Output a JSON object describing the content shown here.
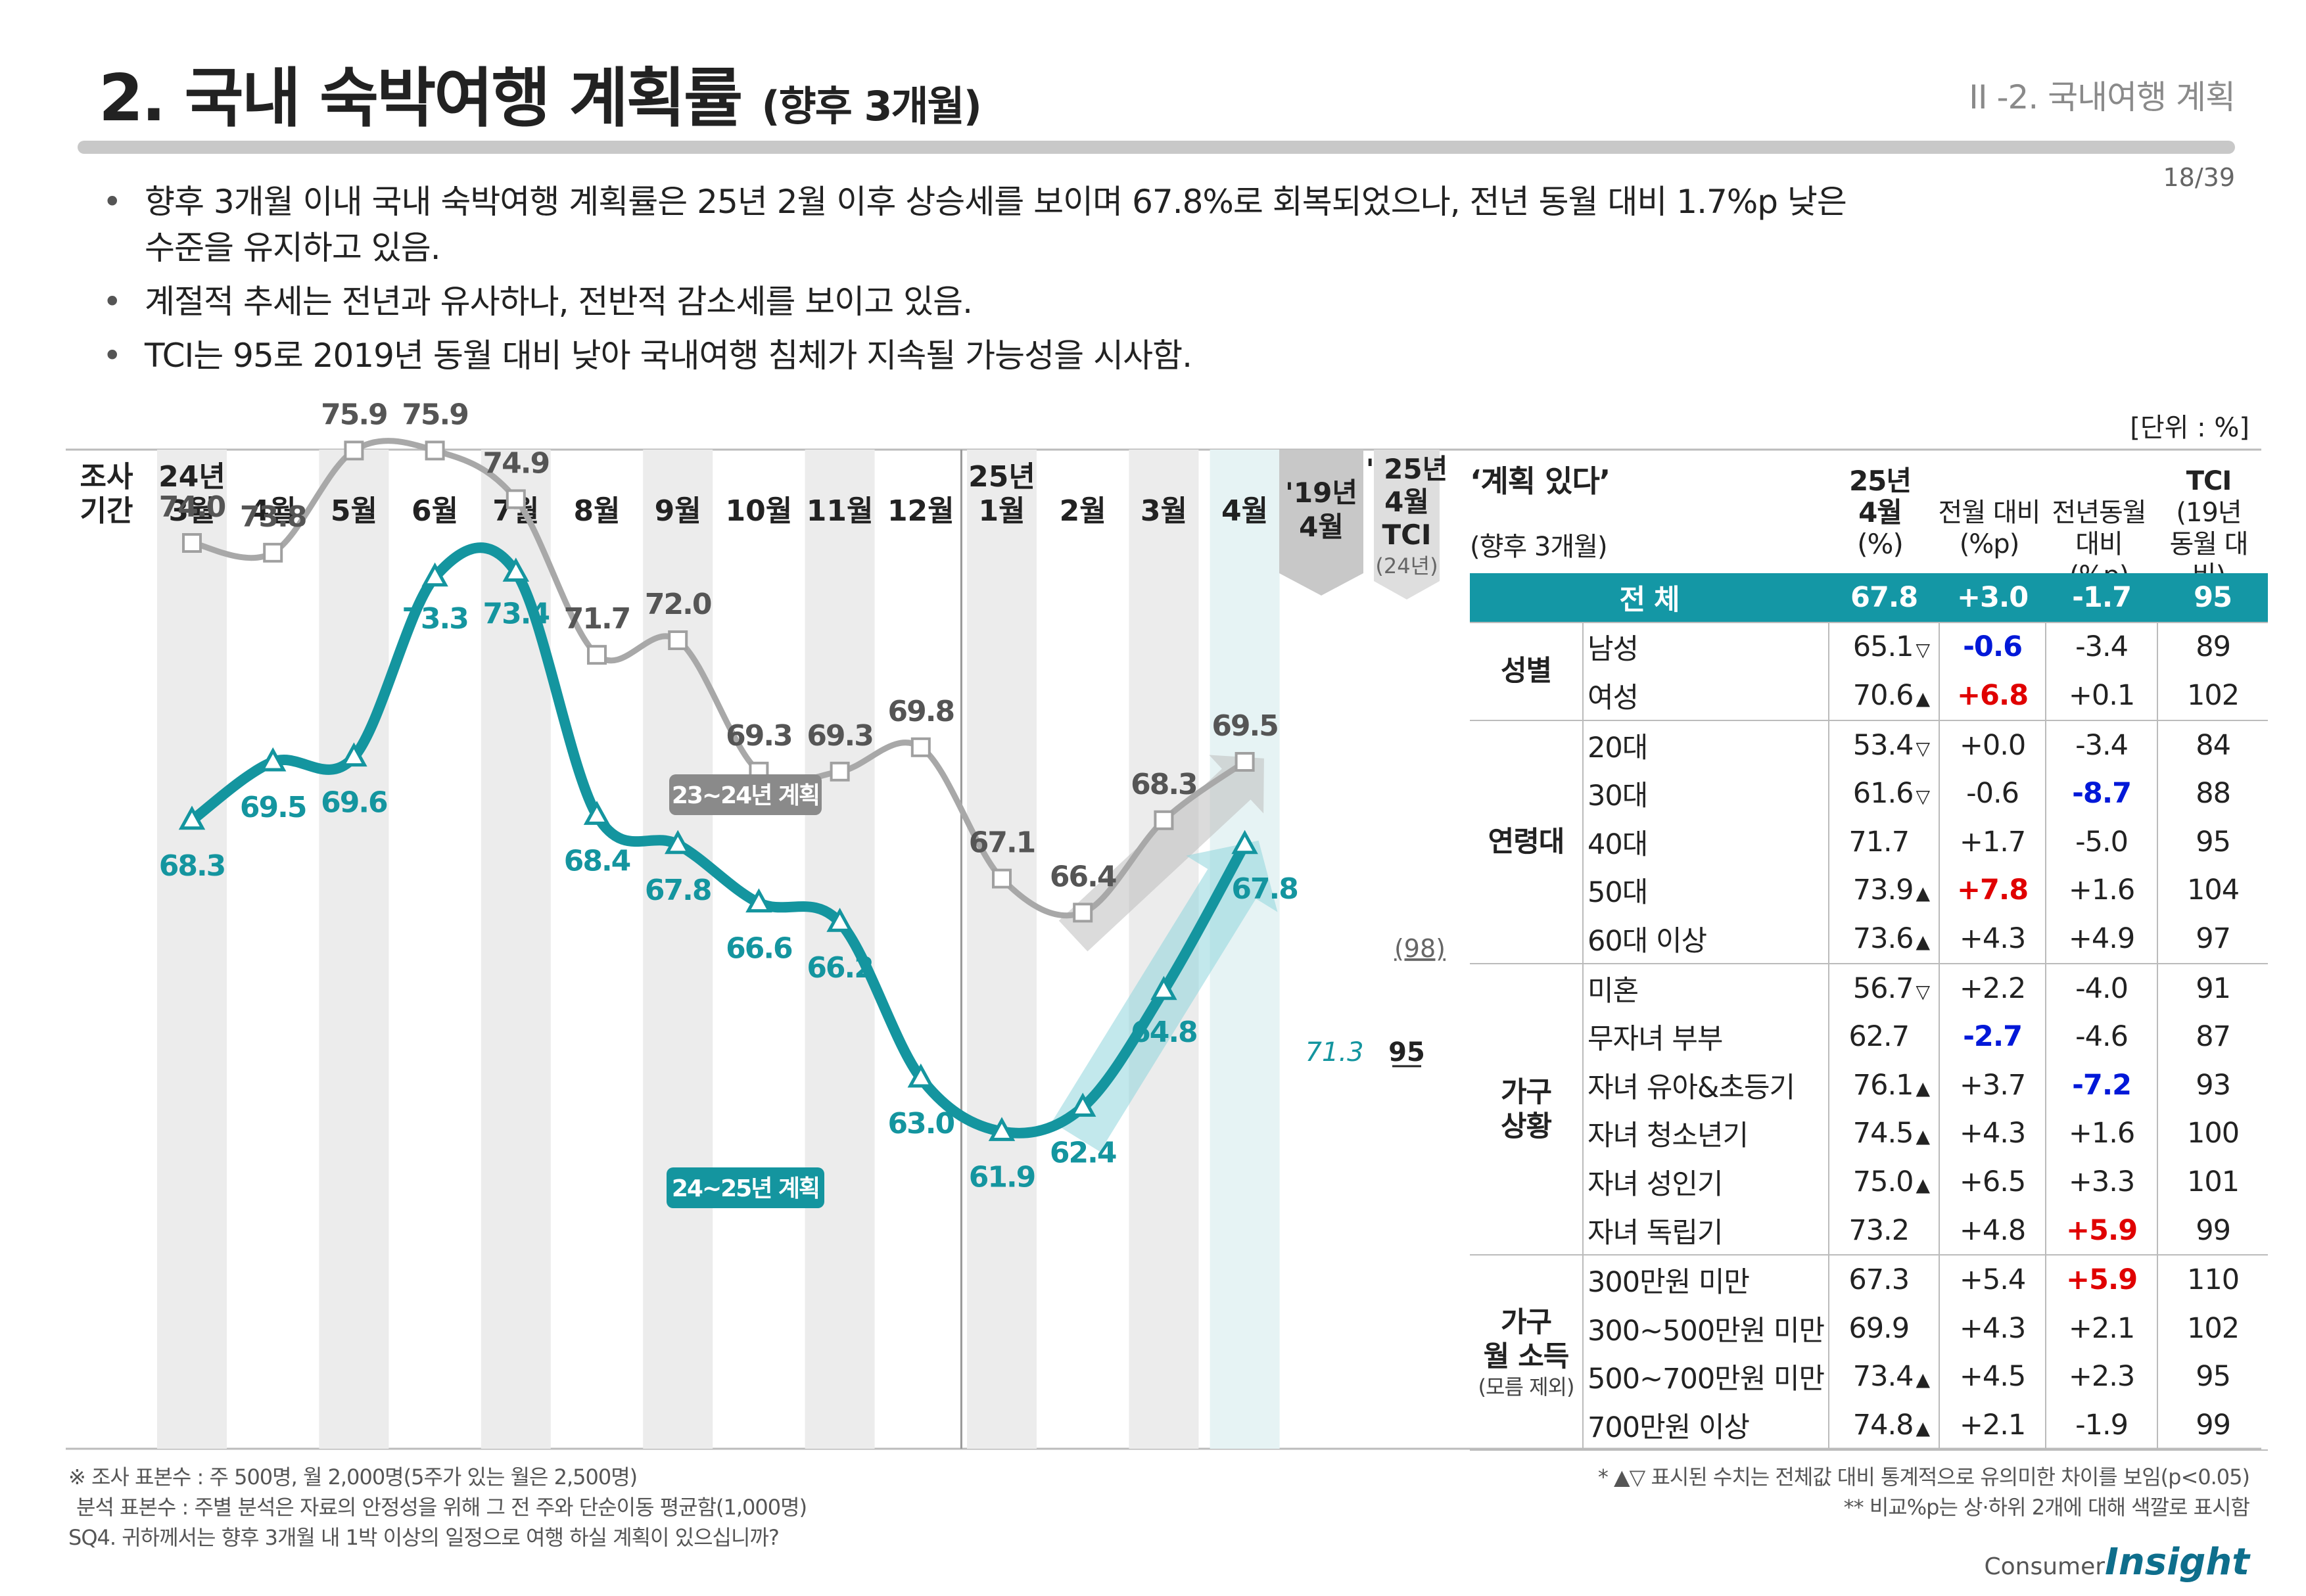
{
  "header": {
    "title": "2. 국내 숙박여행 계획률",
    "title_sub": "(향후 3개월)",
    "section": "II -2. 국내여행 계획",
    "page": "18/39",
    "unit": "[단위 : %]"
  },
  "bullets": [
    "향후 3개월 이내 국내 숙박여행 계획률은 25년 2월 이후 상승세를 보이며 67.8%로 회복되었으나, 전년 동월 대비 1.7%p 낮은 수준을 유지하고 있음.",
    "계절적 추세는 전년과 유사하나, 전반적 감소세를 보이고 있음.",
    "TCI는 95로 2019년 동월 대비 낮아 국내여행 침체가 지속될 가능성을 시사함."
  ],
  "chart_data": {
    "type": "line",
    "row_header": [
      "조사",
      "기간"
    ],
    "categories": [
      [
        "24년",
        "3월"
      ],
      [
        "4월"
      ],
      [
        "5월"
      ],
      [
        "6월"
      ],
      [
        "7월"
      ],
      [
        "8월"
      ],
      [
        "9월"
      ],
      [
        "10월"
      ],
      [
        "11월"
      ],
      [
        "12월"
      ],
      [
        "25년",
        "1월"
      ],
      [
        "2월"
      ],
      [
        "3월"
      ],
      [
        "4월"
      ]
    ],
    "series": [
      {
        "name": "23~24년 계획",
        "color": "#a8a8a8",
        "values": [
          74.0,
          73.8,
          75.9,
          75.9,
          74.9,
          71.7,
          72.0,
          69.3,
          69.3,
          69.8,
          67.1,
          66.4,
          68.3,
          69.5
        ]
      },
      {
        "name": "24~25년 계획",
        "color": "#14959f",
        "values": [
          68.3,
          69.5,
          69.6,
          73.3,
          73.4,
          68.4,
          67.8,
          66.6,
          66.2,
          63.0,
          61.9,
          62.4,
          64.8,
          67.8
        ]
      }
    ],
    "value_labels": {
      "s0": [
        "74.0",
        "73.8",
        "75.9",
        "75.9",
        "74.9",
        "71.7",
        "72.0",
        "69.3",
        "69.3",
        "69.8",
        "67.1",
        "66.4",
        "68.3",
        "69.5"
      ],
      "s1": [
        "68.3",
        "69.5",
        "69.6",
        "73.3",
        "73.4",
        "68.4",
        "67.8",
        "66.6",
        "66.2",
        "63.0",
        "61.9",
        "62.4",
        "64.8",
        "67.8"
      ]
    },
    "extra_columns": {
      "y2019": {
        "label": [
          "'19년",
          "4월"
        ],
        "value": "71.3"
      },
      "tci": {
        "label": [
          "' 25년",
          "4월",
          "TCI"
        ],
        "sublabel": "(24년)",
        "value": "95",
        "prev": "(98)"
      }
    }
  },
  "table": {
    "title": "‘계획 있다’",
    "subtitle": "(향후 3개월)",
    "columns": [
      [
        "25년",
        "4월",
        "(%)"
      ],
      [
        "전월 대비",
        "(%p)"
      ],
      [
        "전년동월",
        "대비 (%p)"
      ],
      [
        "TCI",
        "(19년",
        "동월 대비)"
      ]
    ],
    "total": {
      "label": "전 체",
      "pct": "67.8",
      "mom": "+3.0",
      "yoy": "-1.7",
      "tci": "95"
    },
    "groups": [
      {
        "name": "성별",
        "sub": "",
        "rows": [
          {
            "label": "남성",
            "pct": "65.1",
            "mark": "▽",
            "mom": "-0.6",
            "mom_c": "neg",
            "yoy": "-3.4",
            "yoy_c": "",
            "tci": "89"
          },
          {
            "label": "여성",
            "pct": "70.6",
            "mark": "▲",
            "mom": "+6.8",
            "mom_c": "pos",
            "yoy": "+0.1",
            "yoy_c": "",
            "tci": "102"
          }
        ]
      },
      {
        "name": "연령대",
        "sub": "",
        "rows": [
          {
            "label": "20대",
            "pct": "53.4",
            "mark": "▽",
            "mom": "+0.0",
            "mom_c": "",
            "yoy": "-3.4",
            "yoy_c": "",
            "tci": "84"
          },
          {
            "label": "30대",
            "pct": "61.6",
            "mark": "▽",
            "mom": "-0.6",
            "mom_c": "",
            "yoy": "-8.7",
            "yoy_c": "neg",
            "tci": "88"
          },
          {
            "label": "40대",
            "pct": "71.7",
            "mark": "",
            "mom": "+1.7",
            "mom_c": "",
            "yoy": "-5.0",
            "yoy_c": "",
            "tci": "95"
          },
          {
            "label": "50대",
            "pct": "73.9",
            "mark": "▲",
            "mom": "+7.8",
            "mom_c": "pos",
            "yoy": "+1.6",
            "yoy_c": "",
            "tci": "104"
          },
          {
            "label": "60대 이상",
            "pct": "73.6",
            "mark": "▲",
            "mom": "+4.3",
            "mom_c": "",
            "yoy": "+4.9",
            "yoy_c": "",
            "tci": "97"
          }
        ]
      },
      {
        "name": "가구 상황",
        "sub": "",
        "rows": [
          {
            "label": "미혼",
            "pct": "56.7",
            "mark": "▽",
            "mom": "+2.2",
            "mom_c": "",
            "yoy": "-4.0",
            "yoy_c": "",
            "tci": "91"
          },
          {
            "label": "무자녀 부부",
            "pct": "62.7",
            "mark": "",
            "mom": "-2.7",
            "mom_c": "neg",
            "yoy": "-4.6",
            "yoy_c": "",
            "tci": "87"
          },
          {
            "label": "자녀 유아&초등기",
            "pct": "76.1",
            "mark": "▲",
            "mom": "+3.7",
            "mom_c": "",
            "yoy": "-7.2",
            "yoy_c": "neg",
            "tci": "93"
          },
          {
            "label": "자녀 청소년기",
            "pct": "74.5",
            "mark": "▲",
            "mom": "+4.3",
            "mom_c": "",
            "yoy": "+1.6",
            "yoy_c": "",
            "tci": "100"
          },
          {
            "label": "자녀 성인기",
            "pct": "75.0",
            "mark": "▲",
            "mom": "+6.5",
            "mom_c": "",
            "yoy": "+3.3",
            "yoy_c": "",
            "tci": "101"
          },
          {
            "label": "자녀 독립기",
            "pct": "73.2",
            "mark": "",
            "mom": "+4.8",
            "mom_c": "",
            "yoy": "+5.9",
            "yoy_c": "pos",
            "tci": "99"
          }
        ]
      },
      {
        "name": "가구 월 소득",
        "sub": "(모름 제외)",
        "rows": [
          {
            "label": "300만원 미만",
            "pct": "67.3",
            "mark": "",
            "mom": "+5.4",
            "mom_c": "",
            "yoy": "+5.9",
            "yoy_c": "pos",
            "tci": "110"
          },
          {
            "label": "300~500만원 미만",
            "pct": "69.9",
            "mark": "",
            "mom": "+4.3",
            "mom_c": "",
            "yoy": "+2.1",
            "yoy_c": "",
            "tci": "102"
          },
          {
            "label": "500~700만원 미만",
            "pct": "73.4",
            "mark": "▲",
            "mom": "+4.5",
            "mom_c": "",
            "yoy": "+2.3",
            "yoy_c": "",
            "tci": "95"
          },
          {
            "label": "700만원 이상",
            "pct": "74.8",
            "mark": "▲",
            "mom": "+2.1",
            "mom_c": "",
            "yoy": "-1.9",
            "yoy_c": "",
            "tci": "99"
          }
        ]
      }
    ]
  },
  "footnotes": {
    "left": [
      "※ 조사 표본수 : 주 500명, 월 2,000명(5주가 있는 월은 2,500명)",
      "분석 표본수 : 주별 분석은 자료의 안정성을 위해 그 전 주와 단순이동 평균함(1,000명)",
      "SQ4. 귀하께서는 향후 3개월 내 1박 이상의 일정으로 여행 하실 계획이 있으십니까?"
    ],
    "right": [
      "* ▲▽ 표시된 수치는 전체값 대비 통계적으로 유의미한 차이를 보임(p<0.05)",
      "** 비교%p는 상·하위 2개에 대해 색깔로 표시함"
    ]
  },
  "logo": {
    "a": "Consumer",
    "b": "Insight"
  }
}
